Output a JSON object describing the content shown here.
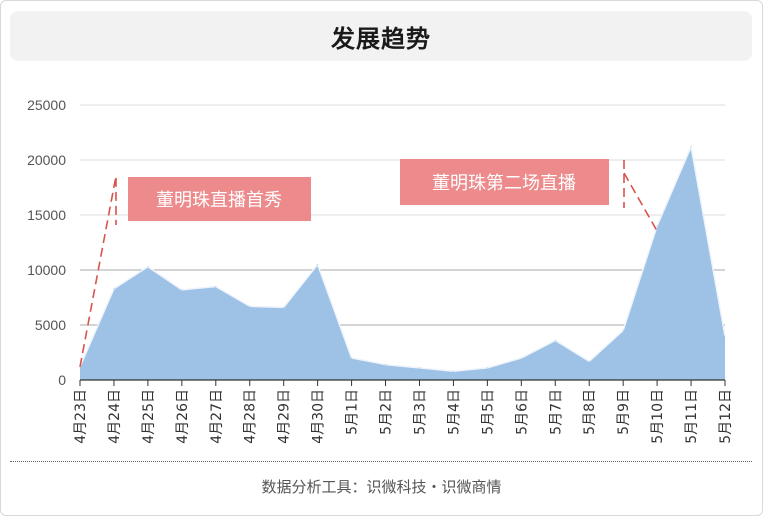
{
  "title": "发展趋势",
  "footer": "数据分析工具：识微科技・识微商情",
  "colors": {
    "area_fill": "#9ec2e6",
    "area_stroke": "#eef4fb",
    "annotation_box": "#ec8a8c",
    "annotation_line": "#d9534f",
    "grid": "#dddddd",
    "grid_dark": "#aaaaaa",
    "axis_text": "#555555"
  },
  "chart_data": {
    "type": "area",
    "title": "",
    "xlabel": "",
    "ylabel": "",
    "ylim": [
      0,
      25000
    ],
    "yticks": [
      0,
      5000,
      10000,
      15000,
      20000,
      25000
    ],
    "grid": true,
    "categories": [
      "4月23日",
      "4月24日",
      "4月25日",
      "4月26日",
      "4月27日",
      "4月28日",
      "4月29日",
      "4月30日",
      "5月1日",
      "5月2日",
      "5月3日",
      "5月4日",
      "5月5日",
      "5月6日",
      "5月7日",
      "5月8日",
      "5月9日",
      "5月10日",
      "5月11日",
      "5月12日"
    ],
    "values": [
      1200,
      8300,
      10300,
      8200,
      8500,
      6700,
      6600,
      10500,
      2000,
      1400,
      1100,
      800,
      1100,
      2000,
      3600,
      1700,
      4500,
      14000,
      21200,
      4000
    ],
    "annotations": [
      {
        "text": "董明珠直播首秀",
        "category": "4月23日"
      },
      {
        "text": "董明珠第二场直播",
        "category": "5月10日"
      }
    ]
  }
}
